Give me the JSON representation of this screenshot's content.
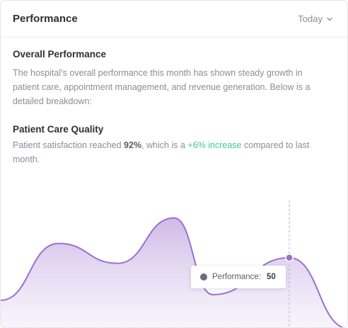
{
  "header": {
    "title": "Performance",
    "period": "Today"
  },
  "overall": {
    "title": "Overall Performance",
    "text": "The hospital’s overall performance this month has shown steady growth in patient care, appointment management, and revenue generation. Below is a detailed breakdown:"
  },
  "care": {
    "title": "Patient Care Quality",
    "text_before": "Patient satisfaction reached ",
    "value": "92%",
    "text_middle": ", which is a ",
    "increase": "+6% increase",
    "text_after": " compared to last month."
  },
  "colors": {
    "accent": "#9b6fcf",
    "fill_top": "#d4c2ea",
    "green": "#3cc9a0"
  },
  "tooltip": {
    "label": "Performance:",
    "value": "50"
  },
  "chart_data": {
    "type": "area",
    "series": [
      {
        "name": "Performance",
        "values": [
          20,
          60,
          46,
          78,
          24,
          50,
          0
        ]
      }
    ],
    "highlight_index": 5,
    "ylim": [
      0,
      100
    ],
    "grid": false
  }
}
